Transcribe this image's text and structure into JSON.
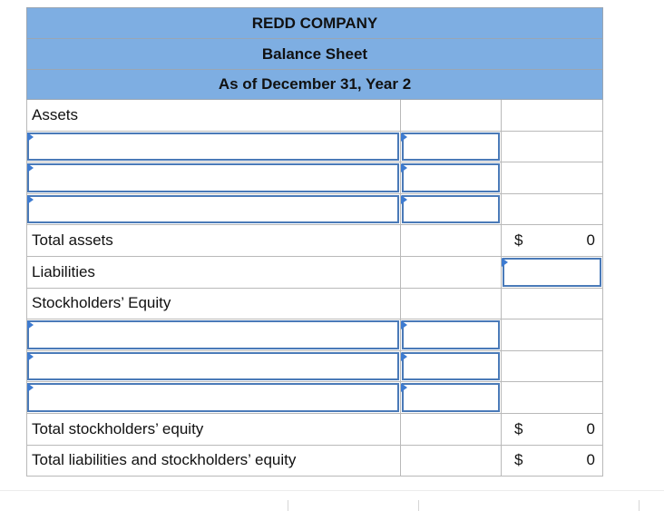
{
  "header": {
    "company": "REDD COMPANY",
    "statement": "Balance Sheet",
    "date": "As of December 31, Year 2"
  },
  "sections": {
    "assets_label": "Assets",
    "total_assets_label": "Total assets",
    "total_assets_currency": "$",
    "total_assets_value": "0",
    "liabilities_label": "Liabilities",
    "equity_label": "Stockholders’ Equity",
    "total_equity_label": "Total stockholders’ equity",
    "total_equity_currency": "$",
    "total_equity_value": "0",
    "total_liab_equity_label": "Total liabilities and stockholders’ equity",
    "total_liab_equity_currency": "$",
    "total_liab_equity_value": "0"
  },
  "colors": {
    "header_bg": "#7eaee2",
    "field_border": "#4a7ab8",
    "marker": "#3d7bd1"
  }
}
